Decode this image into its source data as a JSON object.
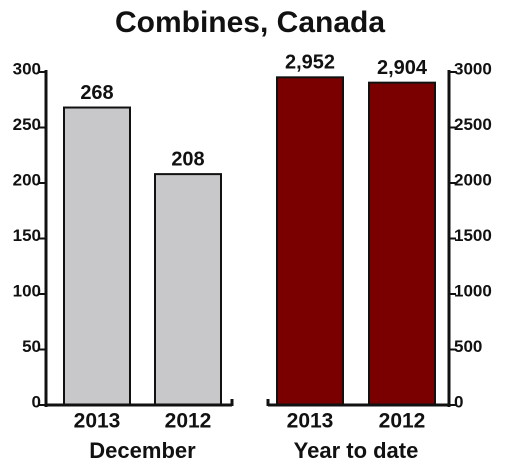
{
  "title": "Combines, Canada",
  "chart_data": [
    {
      "type": "bar",
      "xlabel": "December",
      "categories": [
        "2013",
        "2012"
      ],
      "values": [
        268,
        208
      ],
      "color": "#c8c8ca",
      "ylim": [
        0,
        300
      ],
      "yticks": [
        0,
        50,
        100,
        150,
        200,
        250,
        300
      ]
    },
    {
      "type": "bar",
      "xlabel": "Year to date",
      "categories": [
        "2013",
        "2012"
      ],
      "values": [
        2952,
        2904
      ],
      "value_labels": [
        "2,952",
        "2,904"
      ],
      "color": "#7a0000",
      "ylim": [
        0,
        3000
      ],
      "yticks": [
        0,
        500,
        1000,
        1500,
        2000,
        2500,
        3000
      ]
    }
  ]
}
